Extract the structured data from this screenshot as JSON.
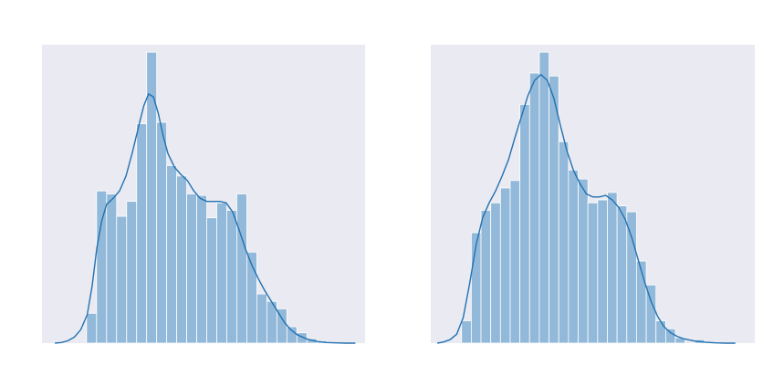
{
  "figure": {
    "background": "#ffffff"
  },
  "style": {
    "axes_facecolor": "#eaeaf2",
    "bar_color": "#92b9d9",
    "bar_edge_color": "#ffffff",
    "kde_color": "#2271b1"
  },
  "chart_data": [
    {
      "type": "bar",
      "title": "",
      "xlabel": "",
      "ylabel": "",
      "grid": false,
      "ticks_visible": false,
      "overlay": "kde-line",
      "xlim": [
        0,
        1
      ],
      "ylim": [
        0,
        1
      ],
      "bins": [
        {
          "x0": 0.138,
          "x1": 0.169,
          "height": 0.1
        },
        {
          "x0": 0.169,
          "x1": 0.2,
          "height": 0.51
        },
        {
          "x0": 0.2,
          "x1": 0.231,
          "height": 0.5
        },
        {
          "x0": 0.231,
          "x1": 0.262,
          "height": 0.425
        },
        {
          "x0": 0.262,
          "x1": 0.293,
          "height": 0.475
        },
        {
          "x0": 0.293,
          "x1": 0.324,
          "height": 0.735
        },
        {
          "x0": 0.324,
          "x1": 0.355,
          "height": 0.975
        },
        {
          "x0": 0.355,
          "x1": 0.386,
          "height": 0.74
        },
        {
          "x0": 0.386,
          "x1": 0.417,
          "height": 0.595
        },
        {
          "x0": 0.417,
          "x1": 0.448,
          "height": 0.56
        },
        {
          "x0": 0.448,
          "x1": 0.479,
          "height": 0.5
        },
        {
          "x0": 0.479,
          "x1": 0.51,
          "height": 0.495
        },
        {
          "x0": 0.51,
          "x1": 0.541,
          "height": 0.42
        },
        {
          "x0": 0.541,
          "x1": 0.572,
          "height": 0.47
        },
        {
          "x0": 0.572,
          "x1": 0.603,
          "height": 0.445
        },
        {
          "x0": 0.603,
          "x1": 0.634,
          "height": 0.5
        },
        {
          "x0": 0.634,
          "x1": 0.665,
          "height": 0.305
        },
        {
          "x0": 0.665,
          "x1": 0.696,
          "height": 0.165
        },
        {
          "x0": 0.696,
          "x1": 0.727,
          "height": 0.14
        },
        {
          "x0": 0.727,
          "x1": 0.758,
          "height": 0.115
        },
        {
          "x0": 0.758,
          "x1": 0.789,
          "height": 0.055
        },
        {
          "x0": 0.789,
          "x1": 0.82,
          "height": 0.035
        },
        {
          "x0": 0.82,
          "x1": 0.851,
          "height": 0.015
        },
        {
          "x0": 0.851,
          "x1": 0.882,
          "height": 0.008
        }
      ],
      "kde": {
        "x": [
          0.04,
          0.06,
          0.08,
          0.1,
          0.12,
          0.14,
          0.155,
          0.17,
          0.185,
          0.2,
          0.22,
          0.24,
          0.26,
          0.28,
          0.3,
          0.315,
          0.33,
          0.345,
          0.36,
          0.375,
          0.39,
          0.41,
          0.43,
          0.45,
          0.47,
          0.49,
          0.51,
          0.53,
          0.55,
          0.57,
          0.59,
          0.61,
          0.63,
          0.65,
          0.67,
          0.69,
          0.71,
          0.73,
          0.75,
          0.77,
          0.79,
          0.82,
          0.85,
          0.88,
          0.91,
          0.94,
          0.97
        ],
        "y": [
          0.0,
          0.002,
          0.008,
          0.02,
          0.045,
          0.095,
          0.19,
          0.32,
          0.41,
          0.465,
          0.485,
          0.51,
          0.56,
          0.64,
          0.73,
          0.795,
          0.835,
          0.825,
          0.77,
          0.695,
          0.635,
          0.59,
          0.565,
          0.545,
          0.51,
          0.485,
          0.475,
          0.475,
          0.475,
          0.47,
          0.44,
          0.38,
          0.315,
          0.26,
          0.215,
          0.175,
          0.14,
          0.105,
          0.07,
          0.045,
          0.028,
          0.014,
          0.006,
          0.002,
          0.001,
          0.0,
          0.0
        ]
      }
    },
    {
      "type": "bar",
      "title": "",
      "xlabel": "",
      "ylabel": "",
      "grid": false,
      "ticks_visible": false,
      "overlay": "kde-line",
      "xlim": [
        0,
        1
      ],
      "ylim": [
        0,
        1
      ],
      "bins": [
        {
          "x0": 0.095,
          "x1": 0.125,
          "height": 0.075
        },
        {
          "x0": 0.125,
          "x1": 0.155,
          "height": 0.37
        },
        {
          "x0": 0.155,
          "x1": 0.185,
          "height": 0.445
        },
        {
          "x0": 0.185,
          "x1": 0.215,
          "height": 0.47
        },
        {
          "x0": 0.215,
          "x1": 0.245,
          "height": 0.52
        },
        {
          "x0": 0.245,
          "x1": 0.275,
          "height": 0.545
        },
        {
          "x0": 0.275,
          "x1": 0.305,
          "height": 0.8
        },
        {
          "x0": 0.305,
          "x1": 0.335,
          "height": 0.905
        },
        {
          "x0": 0.335,
          "x1": 0.365,
          "height": 0.975
        },
        {
          "x0": 0.365,
          "x1": 0.395,
          "height": 0.895
        },
        {
          "x0": 0.395,
          "x1": 0.425,
          "height": 0.675
        },
        {
          "x0": 0.425,
          "x1": 0.455,
          "height": 0.58
        },
        {
          "x0": 0.455,
          "x1": 0.485,
          "height": 0.55
        },
        {
          "x0": 0.485,
          "x1": 0.515,
          "height": 0.47
        },
        {
          "x0": 0.515,
          "x1": 0.545,
          "height": 0.48
        },
        {
          "x0": 0.545,
          "x1": 0.575,
          "height": 0.505
        },
        {
          "x0": 0.575,
          "x1": 0.605,
          "height": 0.46
        },
        {
          "x0": 0.605,
          "x1": 0.635,
          "height": 0.44
        },
        {
          "x0": 0.635,
          "x1": 0.665,
          "height": 0.275
        },
        {
          "x0": 0.665,
          "x1": 0.695,
          "height": 0.195
        },
        {
          "x0": 0.695,
          "x1": 0.725,
          "height": 0.075
        },
        {
          "x0": 0.725,
          "x1": 0.755,
          "height": 0.048
        },
        {
          "x0": 0.755,
          "x1": 0.785,
          "height": 0.018
        },
        {
          "x0": 0.785,
          "x1": 0.815,
          "height": 0.0
        },
        {
          "x0": 0.815,
          "x1": 0.845,
          "height": 0.012
        }
      ],
      "kde": {
        "x": [
          0.02,
          0.04,
          0.06,
          0.08,
          0.1,
          0.12,
          0.14,
          0.16,
          0.18,
          0.2,
          0.22,
          0.24,
          0.26,
          0.28,
          0.3,
          0.32,
          0.34,
          0.36,
          0.38,
          0.4,
          0.42,
          0.44,
          0.46,
          0.48,
          0.5,
          0.52,
          0.54,
          0.56,
          0.58,
          0.6,
          0.62,
          0.64,
          0.66,
          0.68,
          0.7,
          0.72,
          0.74,
          0.76,
          0.78,
          0.8,
          0.82,
          0.85,
          0.88,
          0.91,
          0.94
        ],
        "y": [
          0.0,
          0.004,
          0.012,
          0.03,
          0.085,
          0.2,
          0.33,
          0.42,
          0.47,
          0.51,
          0.56,
          0.615,
          0.69,
          0.76,
          0.83,
          0.88,
          0.9,
          0.88,
          0.82,
          0.73,
          0.645,
          0.58,
          0.535,
          0.5,
          0.49,
          0.49,
          0.495,
          0.48,
          0.455,
          0.415,
          0.355,
          0.28,
          0.205,
          0.14,
          0.09,
          0.055,
          0.035,
          0.023,
          0.015,
          0.01,
          0.006,
          0.003,
          0.001,
          0.0,
          0.0
        ]
      }
    }
  ]
}
